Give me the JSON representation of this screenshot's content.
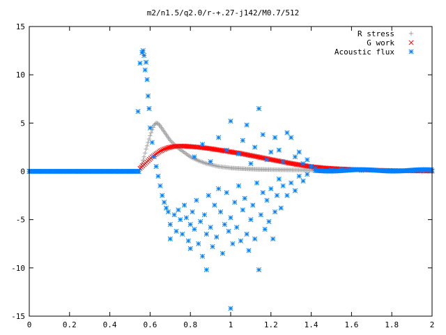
{
  "chart_data": {
    "type": "scatter",
    "title": "m2/n1.5/q2.0/r-+.27-j142/M0.7/512",
    "xlabel": "",
    "ylabel": "",
    "xlim": [
      0,
      2
    ],
    "ylim": [
      -15,
      15
    ],
    "x_ticks": [
      0,
      0.2,
      0.4,
      0.6,
      0.8,
      1,
      1.2,
      1.4,
      1.6,
      1.8,
      2
    ],
    "x_tick_labels": [
      "0",
      "0.2",
      "0.4",
      "0.6",
      "0.8",
      "1",
      "1.2",
      "1.4",
      "1.6",
      "1.8",
      "2"
    ],
    "y_ticks": [
      -15,
      -10,
      -5,
      0,
      5,
      10,
      15
    ],
    "y_tick_labels": [
      "-15",
      "-10",
      "-5",
      "0",
      "5",
      "10",
      "15"
    ],
    "grid": false,
    "legend_position": "top-right",
    "series": [
      {
        "name": "R stress",
        "marker": "plus",
        "color": "#a0a0a0",
        "points": [
          [
            0.55,
            0.2
          ],
          [
            0.56,
            0.8
          ],
          [
            0.57,
            1.5
          ],
          [
            0.58,
            2.3
          ],
          [
            0.59,
            3.0
          ],
          [
            0.6,
            3.7
          ],
          [
            0.61,
            4.3
          ],
          [
            0.62,
            4.8
          ],
          [
            0.63,
            5.0
          ],
          [
            0.64,
            4.95
          ],
          [
            0.65,
            4.7
          ],
          [
            0.66,
            4.4
          ],
          [
            0.67,
            4.1
          ],
          [
            0.68,
            3.8
          ],
          [
            0.69,
            3.5
          ],
          [
            0.7,
            3.2
          ],
          [
            0.72,
            2.8
          ],
          [
            0.74,
            2.4
          ],
          [
            0.76,
            2.1
          ],
          [
            0.78,
            1.8
          ],
          [
            0.8,
            1.5
          ],
          [
            0.82,
            1.3
          ],
          [
            0.84,
            1.1
          ],
          [
            0.86,
            0.95
          ],
          [
            0.88,
            0.8
          ],
          [
            0.9,
            0.7
          ],
          [
            0.92,
            0.6
          ],
          [
            0.94,
            0.5
          ],
          [
            0.96,
            0.45
          ],
          [
            0.98,
            0.4
          ],
          [
            1.0,
            0.35
          ],
          [
            1.04,
            0.3
          ],
          [
            1.08,
            0.25
          ],
          [
            1.12,
            0.22
          ],
          [
            1.16,
            0.2
          ],
          [
            1.2,
            0.18
          ],
          [
            1.25,
            0.16
          ],
          [
            1.3,
            0.15
          ],
          [
            1.35,
            0.14
          ],
          [
            1.4,
            0.13
          ],
          [
            1.45,
            0.12
          ],
          [
            1.5,
            0.1
          ]
        ]
      },
      {
        "name": "G work",
        "marker": "cross",
        "color": "#ff0000",
        "points": [
          [
            0.55,
            0.3
          ],
          [
            0.57,
            0.7
          ],
          [
            0.59,
            1.1
          ],
          [
            0.61,
            1.5
          ],
          [
            0.63,
            1.8
          ],
          [
            0.65,
            2.1
          ],
          [
            0.67,
            2.3
          ],
          [
            0.69,
            2.45
          ],
          [
            0.71,
            2.55
          ],
          [
            0.73,
            2.6
          ],
          [
            0.75,
            2.62
          ],
          [
            0.78,
            2.6
          ],
          [
            0.81,
            2.55
          ],
          [
            0.84,
            2.5
          ],
          [
            0.87,
            2.43
          ],
          [
            0.9,
            2.35
          ],
          [
            0.93,
            2.25
          ],
          [
            0.96,
            2.15
          ],
          [
            0.99,
            2.05
          ],
          [
            1.02,
            1.95
          ],
          [
            1.05,
            1.85
          ],
          [
            1.08,
            1.72
          ],
          [
            1.11,
            1.6
          ],
          [
            1.14,
            1.48
          ],
          [
            1.17,
            1.35
          ],
          [
            1.2,
            1.22
          ],
          [
            1.23,
            1.1
          ],
          [
            1.26,
            0.98
          ],
          [
            1.29,
            0.86
          ],
          [
            1.32,
            0.75
          ],
          [
            1.35,
            0.65
          ],
          [
            1.38,
            0.55
          ],
          [
            1.41,
            0.45
          ],
          [
            1.45,
            0.38
          ],
          [
            1.5,
            0.3
          ],
          [
            1.55,
            0.25
          ],
          [
            1.6,
            0.2
          ],
          [
            1.65,
            0.16
          ],
          [
            1.7,
            0.13
          ],
          [
            1.75,
            0.1
          ],
          [
            1.8,
            0.08
          ],
          [
            1.85,
            0.06
          ],
          [
            1.9,
            0.05
          ],
          [
            1.95,
            0.04
          ],
          [
            2.0,
            0.03
          ]
        ]
      },
      {
        "name": "Acoustic flux",
        "marker": "star",
        "color": "#0080ff",
        "points": [
          [
            0.0,
            0
          ],
          [
            0.05,
            0
          ],
          [
            0.1,
            0
          ],
          [
            0.15,
            0
          ],
          [
            0.2,
            0
          ],
          [
            0.25,
            0
          ],
          [
            0.3,
            0
          ],
          [
            0.35,
            0
          ],
          [
            0.4,
            0
          ],
          [
            0.45,
            0
          ],
          [
            0.5,
            0
          ],
          [
            0.54,
            0
          ],
          [
            0.54,
            6.2
          ],
          [
            0.55,
            11.2
          ],
          [
            0.56,
            12.3
          ],
          [
            0.565,
            12.5
          ],
          [
            0.57,
            12.0
          ],
          [
            0.575,
            10.5
          ],
          [
            0.58,
            11.3
          ],
          [
            0.585,
            9.5
          ],
          [
            0.59,
            7.8
          ],
          [
            0.595,
            6.5
          ],
          [
            0.6,
            4.5
          ],
          [
            0.61,
            3.0
          ],
          [
            0.62,
            1.5
          ],
          [
            0.63,
            0.5
          ],
          [
            0.64,
            -0.5
          ],
          [
            0.65,
            -1.5
          ],
          [
            0.66,
            -2.5
          ],
          [
            0.67,
            -3.2
          ],
          [
            0.68,
            -3.8
          ],
          [
            0.69,
            -4.2
          ],
          [
            0.7,
            -5.5
          ],
          [
            0.7,
            -7.0
          ],
          [
            0.72,
            -4.5
          ],
          [
            0.73,
            -6.2
          ],
          [
            0.74,
            -4.0
          ],
          [
            0.75,
            -5.0
          ],
          [
            0.76,
            -6.5
          ],
          [
            0.77,
            -3.5
          ],
          [
            0.78,
            -4.8
          ],
          [
            0.79,
            -7.2
          ],
          [
            0.8,
            -5.5
          ],
          [
            0.8,
            -8.0
          ],
          [
            0.81,
            -4.2
          ],
          [
            0.82,
            -6.0
          ],
          [
            0.83,
            -3.0
          ],
          [
            0.84,
            -7.5
          ],
          [
            0.85,
            -5.2
          ],
          [
            0.86,
            -8.8
          ],
          [
            0.87,
            -4.5
          ],
          [
            0.88,
            -10.2
          ],
          [
            0.88,
            -6.5
          ],
          [
            0.89,
            -2.5
          ],
          [
            0.9,
            -5.8
          ],
          [
            0.91,
            -7.8
          ],
          [
            0.92,
            -3.5
          ],
          [
            0.93,
            -6.8
          ],
          [
            0.94,
            -1.8
          ],
          [
            0.95,
            -4.2
          ],
          [
            0.96,
            -8.5
          ],
          [
            0.97,
            -5.5
          ],
          [
            0.98,
            -2.2
          ],
          [
            0.99,
            -6.2
          ],
          [
            1.0,
            -14.2
          ],
          [
            1.0,
            -4.8
          ],
          [
            1.01,
            -7.5
          ],
          [
            1.02,
            -3.2
          ],
          [
            1.03,
            -5.8
          ],
          [
            1.04,
            -1.5
          ],
          [
            1.05,
            -7.2
          ],
          [
            1.06,
            -4.0
          ],
          [
            1.07,
            -2.8
          ],
          [
            1.08,
            -6.5
          ],
          [
            1.09,
            -8.2
          ],
          [
            1.1,
            -5.0
          ],
          [
            1.11,
            -3.5
          ],
          [
            1.12,
            -7.0
          ],
          [
            1.13,
            -1.2
          ],
          [
            1.14,
            -10.2
          ],
          [
            1.15,
            -4.5
          ],
          [
            1.16,
            -2.2
          ],
          [
            1.17,
            -6.0
          ],
          [
            1.18,
            -3.0
          ],
          [
            1.19,
            -5.2
          ],
          [
            1.2,
            -1.8
          ],
          [
            1.21,
            -7.0
          ],
          [
            1.22,
            -4.2
          ],
          [
            1.23,
            -2.5
          ],
          [
            1.24,
            -0.8
          ],
          [
            1.25,
            -3.8
          ],
          [
            1.26,
            -1.5
          ],
          [
            1.28,
            -2.5
          ],
          [
            1.3,
            -1.2
          ],
          [
            1.32,
            -2.0
          ],
          [
            1.34,
            -0.5
          ],
          [
            1.36,
            -1.0
          ],
          [
            1.38,
            -0.3
          ],
          [
            0.82,
            1.5
          ],
          [
            0.86,
            2.8
          ],
          [
            0.9,
            1.0
          ],
          [
            0.94,
            3.5
          ],
          [
            0.98,
            2.2
          ],
          [
            1.0,
            5.2
          ],
          [
            1.04,
            1.8
          ],
          [
            1.06,
            3.2
          ],
          [
            1.08,
            4.8
          ],
          [
            1.1,
            0.8
          ],
          [
            1.12,
            2.5
          ],
          [
            1.14,
            6.5
          ],
          [
            1.16,
            3.8
          ],
          [
            1.18,
            1.2
          ],
          [
            1.2,
            2.0
          ],
          [
            1.22,
            3.5
          ],
          [
            1.24,
            2.2
          ],
          [
            1.26,
            1.0
          ],
          [
            1.28,
            4.0
          ],
          [
            1.3,
            3.5
          ],
          [
            1.32,
            1.5
          ],
          [
            1.34,
            2.0
          ],
          [
            1.36,
            0.8
          ],
          [
            1.38,
            1.2
          ],
          [
            1.4,
            0.5
          ],
          [
            1.42,
            0.3
          ],
          [
            1.45,
            0.1
          ],
          [
            1.5,
            0.15
          ],
          [
            1.55,
            0.2
          ],
          [
            1.6,
            0.15
          ],
          [
            1.65,
            0.1
          ],
          [
            1.7,
            0.12
          ],
          [
            1.75,
            0.1
          ],
          [
            1.8,
            0.08
          ],
          [
            1.85,
            0.06
          ],
          [
            1.9,
            0.05
          ],
          [
            1.95,
            0.04
          ],
          [
            2.0,
            0.03
          ]
        ]
      }
    ]
  }
}
